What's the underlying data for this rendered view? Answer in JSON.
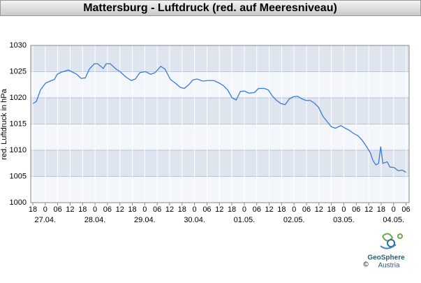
{
  "chart_data": {
    "type": "line",
    "title": "Mattersburg - Luftdruck (red. auf Meeresniveau)",
    "y_label": "red. Luftdruck in hPa",
    "color": "#3c78d8",
    "x": [
      0,
      1.7,
      3.7,
      6.1,
      8.4,
      10.4,
      11.8,
      13.8,
      17.2,
      21.2,
      23.3,
      25.3,
      27.3,
      29.7,
      31.3,
      34,
      35.4,
      37.4,
      40.1,
      42.1,
      44.8,
      47.5,
      49.5,
      51.6,
      54.3,
      56.9,
      59,
      61.7,
      63.7,
      66.4,
      69.1,
      71.1,
      73.1,
      75.2,
      77.2,
      79.2,
      81.9,
      84.6,
      87.3,
      90,
      92,
      94,
      96.1,
      98.1,
      100.1,
      102.1,
      104.1,
      106.8,
      108.9,
      111.6,
      113.6,
      115.6,
      117.6,
      119.7,
      121.7,
      123.7,
      125.7,
      127.7,
      129.8,
      131.8,
      133.8,
      135.8,
      137.8,
      139.9,
      141.9,
      143.9,
      145.9,
      148.6,
      150.7,
      152.7,
      154.7,
      156.7,
      158.7,
      160.8,
      162.8,
      164.1,
      165.5,
      166.8,
      167.8,
      168.8,
      170.9,
      172.2,
      174.2,
      176.2,
      178.2,
      180
    ],
    "values": [
      1018.9,
      1019.3,
      1021.5,
      1022.8,
      1023.2,
      1023.5,
      1024.5,
      1024.9,
      1025.3,
      1024.5,
      1023.7,
      1023.8,
      1025.5,
      1026.5,
      1026.5,
      1025.6,
      1026.5,
      1026.5,
      1025.5,
      1025,
      1024,
      1023.3,
      1023.6,
      1024.8,
      1025,
      1024.5,
      1024.8,
      1026,
      1025.5,
      1023.5,
      1022.7,
      1022,
      1021.8,
      1022.5,
      1023.4,
      1023.6,
      1023.2,
      1023.3,
      1023.3,
      1022.8,
      1022.3,
      1021.5,
      1020,
      1019.6,
      1021.2,
      1021.3,
      1020.9,
      1021,
      1021.8,
      1021.8,
      1021.5,
      1020.3,
      1019.5,
      1018.9,
      1018.7,
      1019.8,
      1020.2,
      1020.3,
      1019.8,
      1019.5,
      1019.5,
      1019,
      1018.2,
      1016.5,
      1015.5,
      1014.5,
      1014.2,
      1014.7,
      1014.2,
      1013.8,
      1013.2,
      1012.8,
      1012,
      1010.8,
      1009.5,
      1008,
      1007.2,
      1007.5,
      1010.7,
      1007.5,
      1007.8,
      1006.8,
      1006.7,
      1006.1,
      1006.2,
      1005.8
    ],
    "xlim": [
      -1,
      181.5
    ],
    "xticks": [
      {
        "value": 0,
        "label": "18"
      },
      {
        "value": 6,
        "label": "0"
      },
      {
        "value": 12,
        "label": "06"
      },
      {
        "value": 18,
        "label": "12"
      },
      {
        "value": 24,
        "label": "18"
      },
      {
        "value": 30,
        "label": "0"
      },
      {
        "value": 36,
        "label": "06"
      },
      {
        "value": 42,
        "label": "12"
      },
      {
        "value": 48,
        "label": "18"
      },
      {
        "value": 54,
        "label": "0"
      },
      {
        "value": 60,
        "label": "06"
      },
      {
        "value": 66,
        "label": "12"
      },
      {
        "value": 72,
        "label": "18"
      },
      {
        "value": 78,
        "label": "0"
      },
      {
        "value": 84,
        "label": "06"
      },
      {
        "value": 90,
        "label": "12"
      },
      {
        "value": 96,
        "label": "18"
      },
      {
        "value": 102,
        "label": "0"
      },
      {
        "value": 108,
        "label": "06"
      },
      {
        "value": 114,
        "label": "12"
      },
      {
        "value": 120,
        "label": "18"
      },
      {
        "value": 126,
        "label": "0"
      },
      {
        "value": 132,
        "label": "06"
      },
      {
        "value": 138,
        "label": "12"
      },
      {
        "value": 144,
        "label": "18"
      },
      {
        "value": 150,
        "label": "0"
      },
      {
        "value": 156,
        "label": "06"
      },
      {
        "value": 162,
        "label": "12"
      },
      {
        "value": 168,
        "label": "18"
      },
      {
        "value": 174,
        "label": "0"
      },
      {
        "value": 180,
        "label": "06"
      }
    ],
    "date_ticks": [
      {
        "value": 6,
        "label": "27.04."
      },
      {
        "value": 30,
        "label": "28.04."
      },
      {
        "value": 54,
        "label": "29.04."
      },
      {
        "value": 78,
        "label": "30.04."
      },
      {
        "value": 102,
        "label": "01.05."
      },
      {
        "value": 126,
        "label": "02.05."
      },
      {
        "value": 150,
        "label": "03.05."
      },
      {
        "value": 174,
        "label": "04.05."
      }
    ],
    "ylim": [
      1000,
      1030
    ],
    "yticks": [
      1000,
      1005,
      1010,
      1015,
      1020,
      1025,
      1030
    ],
    "grid": true
  },
  "logo": {
    "name": "GeoSphere",
    "country": "Austria",
    "copyright": "©"
  }
}
